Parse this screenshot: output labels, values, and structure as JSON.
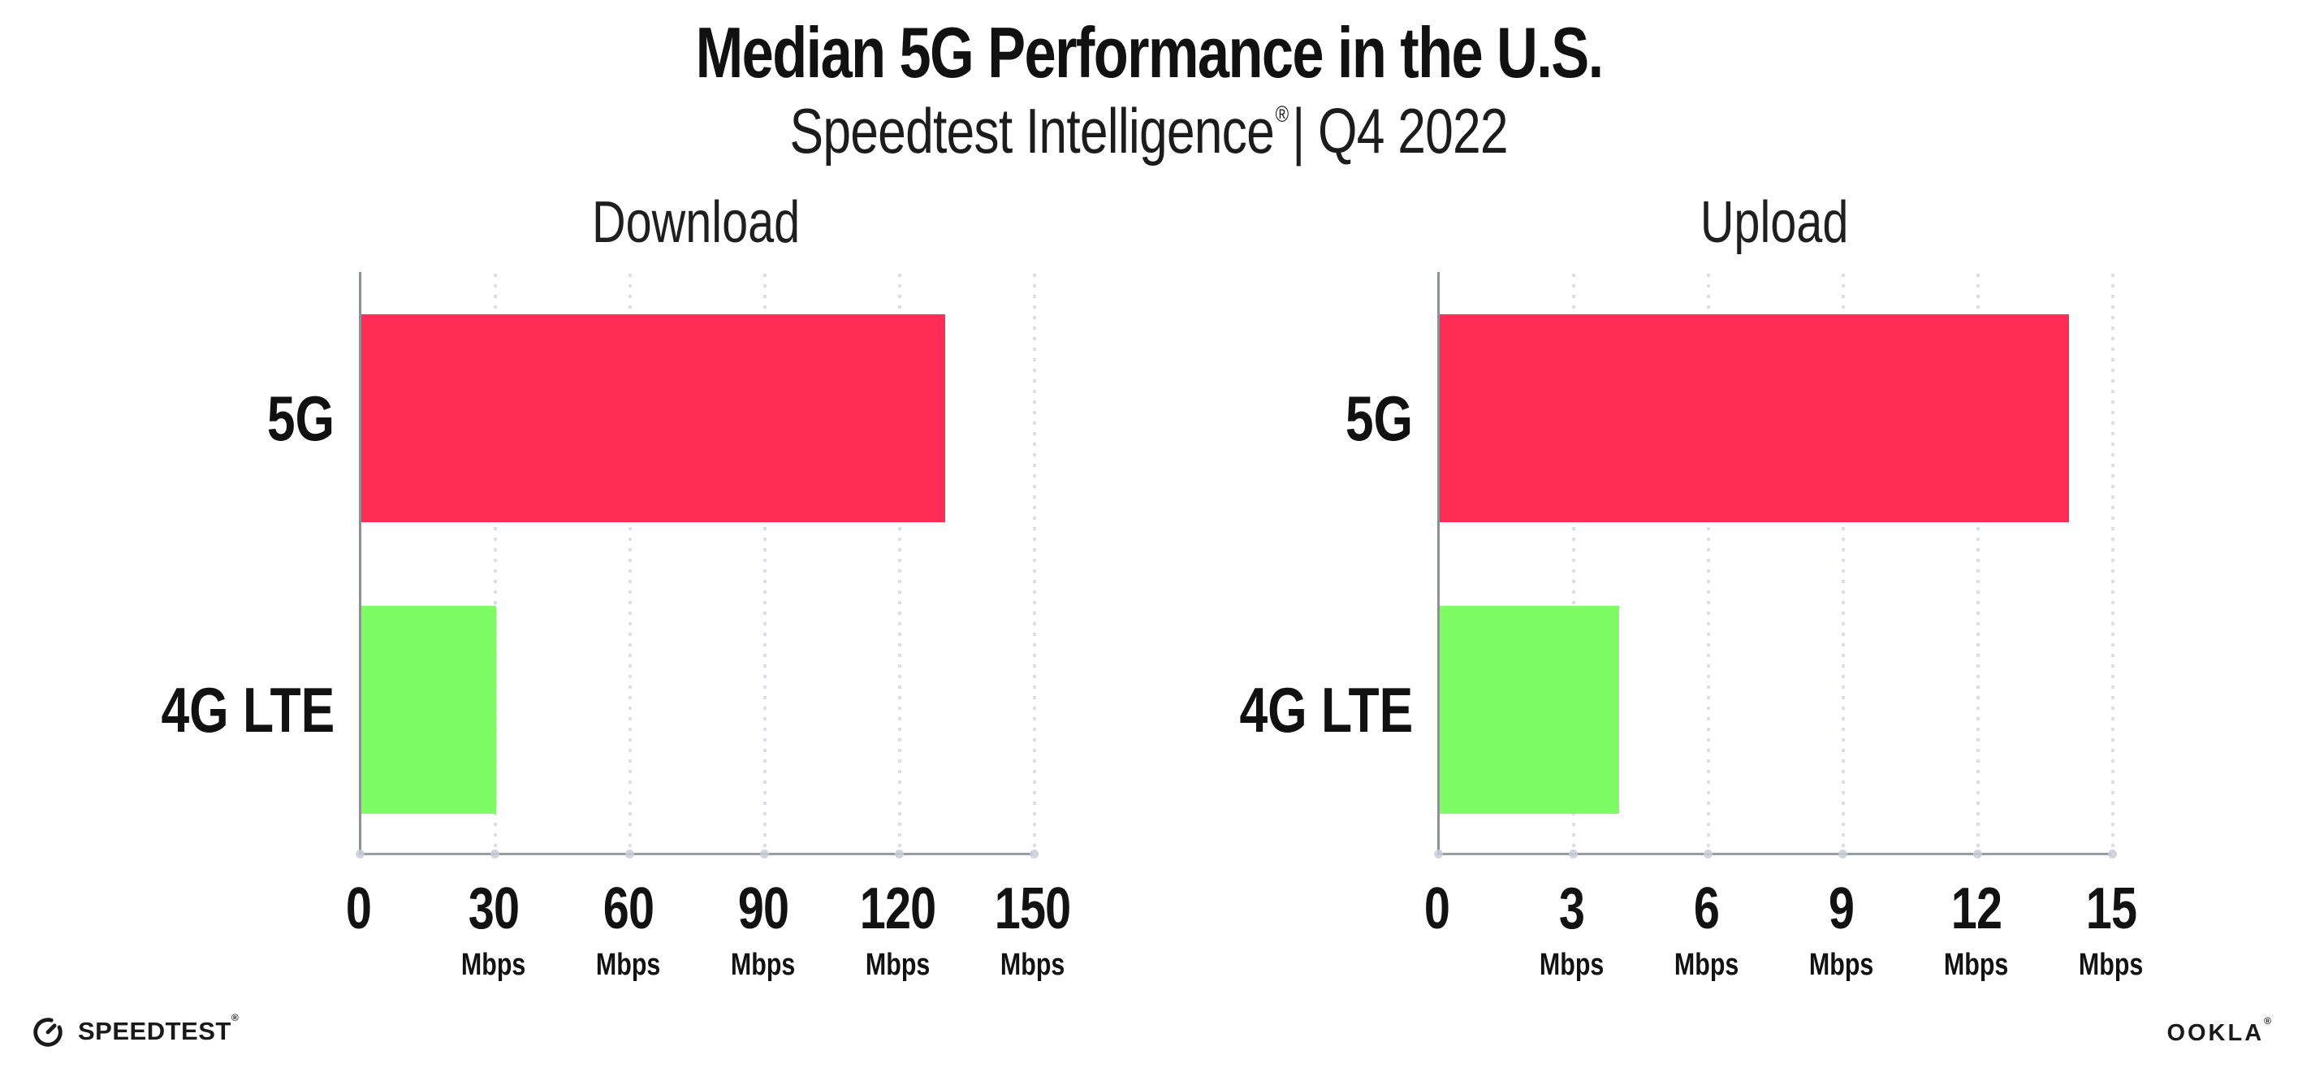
{
  "page": {
    "title": "Median 5G Performance in the U.S.",
    "subtitle": {
      "brand": "Speedtest Intelligence",
      "reg": "®",
      "rest": "| Q4 2022"
    }
  },
  "chart_data": {
    "type": "bar",
    "orientation": "horizontal",
    "title": "Median 5G Performance in the U.S.",
    "subtitle": "Speedtest Intelligence® | Q4 2022",
    "categories": [
      "5G",
      "4G LTE"
    ],
    "unit": "Mbps",
    "grid": "dotted-vertical-gridlines",
    "legend": "none",
    "colors": {
      "5G": "#FF2D55",
      "4G LTE": "#7EFC64"
    },
    "charts": [
      {
        "title": "Download",
        "xlabel_unit": "Mbps",
        "xlim": [
          0,
          150
        ],
        "ticks": [
          0,
          30,
          60,
          90,
          120,
          150
        ],
        "series": [
          {
            "category": "5G",
            "value": 130
          },
          {
            "category": "4G LTE",
            "value": 30
          }
        ]
      },
      {
        "title": "Upload",
        "xlabel_unit": "Mbps",
        "xlim": [
          0,
          15
        ],
        "ticks": [
          0,
          3,
          6,
          9,
          12,
          15
        ],
        "series": [
          {
            "category": "5G",
            "value": 14
          },
          {
            "category": "4G LTE",
            "value": 4
          }
        ]
      }
    ]
  },
  "footer": {
    "speedtest": {
      "label": "SPEEDTEST",
      "reg": "®",
      "icon": "speedtest-gauge-icon"
    },
    "ookla": {
      "label": "OOKLA",
      "reg": "®"
    }
  }
}
